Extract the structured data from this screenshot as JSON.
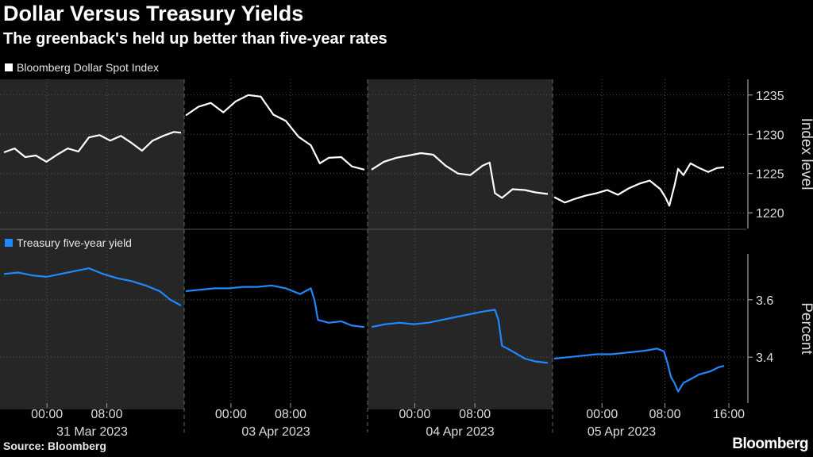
{
  "chart_title": "Dollar Versus Treasury Yields",
  "chart_subtitle": "The greenback's held up better than five-year rates",
  "source": "Source: Bloomberg",
  "brand": "Bloomberg",
  "chart_data": [
    {
      "type": "line",
      "panel": "top",
      "legend": "Bloomberg Dollar Spot Index",
      "ylabel": "Index level",
      "ylim": [
        1218,
        1237
      ],
      "yticks": [
        1220,
        1225,
        1230,
        1235
      ],
      "color": "#ffffff",
      "segments": [
        {
          "day": "31 Mar 2023",
          "points": [
            [
              0,
              1227.7
            ],
            [
              0.06,
              1228.2
            ],
            [
              0.12,
              1227.1
            ],
            [
              0.18,
              1227.3
            ],
            [
              0.24,
              1226.5
            ],
            [
              0.3,
              1227.4
            ],
            [
              0.36,
              1228.2
            ],
            [
              0.42,
              1227.8
            ],
            [
              0.48,
              1229.6
            ],
            [
              0.54,
              1229.9
            ],
            [
              0.6,
              1229.2
            ],
            [
              0.66,
              1229.8
            ],
            [
              0.72,
              1228.9
            ],
            [
              0.78,
              1227.9
            ],
            [
              0.84,
              1229.2
            ],
            [
              0.9,
              1229.8
            ],
            [
              0.96,
              1230.3
            ],
            [
              1.0,
              1230.2
            ]
          ]
        },
        {
          "day": "03 Apr 2023",
          "points": [
            [
              0,
              1232.4
            ],
            [
              0.07,
              1233.5
            ],
            [
              0.14,
              1234.0
            ],
            [
              0.21,
              1232.8
            ],
            [
              0.28,
              1234.2
            ],
            [
              0.35,
              1235.0
            ],
            [
              0.42,
              1234.8
            ],
            [
              0.49,
              1232.5
            ],
            [
              0.56,
              1231.7
            ],
            [
              0.63,
              1229.7
            ],
            [
              0.7,
              1228.6
            ],
            [
              0.75,
              1226.3
            ],
            [
              0.8,
              1227.0
            ],
            [
              0.87,
              1227.1
            ],
            [
              0.93,
              1225.9
            ],
            [
              1.0,
              1225.5
            ]
          ]
        },
        {
          "day": "04 Apr 2023",
          "points": [
            [
              0,
              1225.5
            ],
            [
              0.07,
              1226.5
            ],
            [
              0.14,
              1227.0
            ],
            [
              0.21,
              1227.3
            ],
            [
              0.28,
              1227.6
            ],
            [
              0.35,
              1227.4
            ],
            [
              0.42,
              1226.0
            ],
            [
              0.49,
              1225.0
            ],
            [
              0.56,
              1224.8
            ],
            [
              0.63,
              1226.0
            ],
            [
              0.67,
              1226.4
            ],
            [
              0.7,
              1222.5
            ],
            [
              0.74,
              1221.9
            ],
            [
              0.8,
              1223.0
            ],
            [
              0.87,
              1222.9
            ],
            [
              0.93,
              1222.6
            ],
            [
              1.0,
              1222.4
            ]
          ]
        },
        {
          "day": "05 Apr 2023",
          "points": [
            [
              0,
              1222.0
            ],
            [
              0.06,
              1221.3
            ],
            [
              0.12,
              1221.8
            ],
            [
              0.18,
              1222.2
            ],
            [
              0.24,
              1222.5
            ],
            [
              0.3,
              1222.9
            ],
            [
              0.36,
              1222.3
            ],
            [
              0.42,
              1223.1
            ],
            [
              0.48,
              1223.7
            ],
            [
              0.54,
              1224.1
            ],
            [
              0.6,
              1223.0
            ],
            [
              0.63,
              1221.9
            ],
            [
              0.65,
              1220.9
            ],
            [
              0.68,
              1223.5
            ],
            [
              0.7,
              1225.6
            ],
            [
              0.73,
              1224.8
            ],
            [
              0.77,
              1226.3
            ],
            [
              0.82,
              1225.7
            ],
            [
              0.87,
              1225.2
            ],
            [
              0.92,
              1225.7
            ],
            [
              0.96,
              1225.8
            ]
          ]
        }
      ]
    },
    {
      "type": "line",
      "panel": "bottom",
      "legend": "Treasury five-year yield",
      "ylabel": "Percent",
      "ylim": [
        3.24,
        3.76
      ],
      "yticks": [
        3.4,
        3.6
      ],
      "color": "#1e88ff",
      "segments": [
        {
          "day": "31 Mar 2023",
          "points": [
            [
              0,
              3.69
            ],
            [
              0.08,
              3.695
            ],
            [
              0.16,
              3.685
            ],
            [
              0.24,
              3.68
            ],
            [
              0.32,
              3.69
            ],
            [
              0.4,
              3.7
            ],
            [
              0.48,
              3.71
            ],
            [
              0.56,
              3.69
            ],
            [
              0.64,
              3.675
            ],
            [
              0.72,
              3.665
            ],
            [
              0.8,
              3.65
            ],
            [
              0.88,
              3.63
            ],
            [
              0.94,
              3.6
            ],
            [
              1.0,
              3.58
            ]
          ]
        },
        {
          "day": "03 Apr 2023",
          "points": [
            [
              0,
              3.63
            ],
            [
              0.08,
              3.635
            ],
            [
              0.16,
              3.64
            ],
            [
              0.24,
              3.64
            ],
            [
              0.32,
              3.645
            ],
            [
              0.4,
              3.645
            ],
            [
              0.48,
              3.65
            ],
            [
              0.56,
              3.64
            ],
            [
              0.64,
              3.62
            ],
            [
              0.7,
              3.64
            ],
            [
              0.72,
              3.6
            ],
            [
              0.74,
              3.53
            ],
            [
              0.8,
              3.52
            ],
            [
              0.87,
              3.525
            ],
            [
              0.93,
              3.51
            ],
            [
              1.0,
              3.505
            ]
          ]
        },
        {
          "day": "04 Apr 2023",
          "points": [
            [
              0,
              3.505
            ],
            [
              0.08,
              3.515
            ],
            [
              0.16,
              3.52
            ],
            [
              0.24,
              3.515
            ],
            [
              0.32,
              3.52
            ],
            [
              0.4,
              3.53
            ],
            [
              0.48,
              3.54
            ],
            [
              0.56,
              3.55
            ],
            [
              0.64,
              3.56
            ],
            [
              0.7,
              3.565
            ],
            [
              0.72,
              3.53
            ],
            [
              0.74,
              3.44
            ],
            [
              0.8,
              3.42
            ],
            [
              0.87,
              3.395
            ],
            [
              0.93,
              3.385
            ],
            [
              1.0,
              3.38
            ]
          ]
        },
        {
          "day": "05 Apr 2023",
          "points": [
            [
              0,
              3.395
            ],
            [
              0.08,
              3.4
            ],
            [
              0.16,
              3.405
            ],
            [
              0.24,
              3.41
            ],
            [
              0.32,
              3.41
            ],
            [
              0.4,
              3.415
            ],
            [
              0.48,
              3.42
            ],
            [
              0.54,
              3.425
            ],
            [
              0.58,
              3.43
            ],
            [
              0.62,
              3.42
            ],
            [
              0.64,
              3.38
            ],
            [
              0.66,
              3.33
            ],
            [
              0.68,
              3.31
            ],
            [
              0.7,
              3.28
            ],
            [
              0.73,
              3.31
            ],
            [
              0.76,
              3.32
            ],
            [
              0.82,
              3.34
            ],
            [
              0.88,
              3.35
            ],
            [
              0.93,
              3.365
            ],
            [
              0.96,
              3.37
            ]
          ]
        }
      ]
    }
  ],
  "x_axis": {
    "tick_labels": [
      "00:00",
      "08:00",
      "00:00",
      "08:00",
      "00:00",
      "08:00",
      "00:00",
      "08:00",
      "16:00"
    ],
    "day_labels": [
      "31 Mar 2023",
      "03 Apr 2023",
      "04 Apr 2023",
      "05 Apr 2023"
    ]
  }
}
